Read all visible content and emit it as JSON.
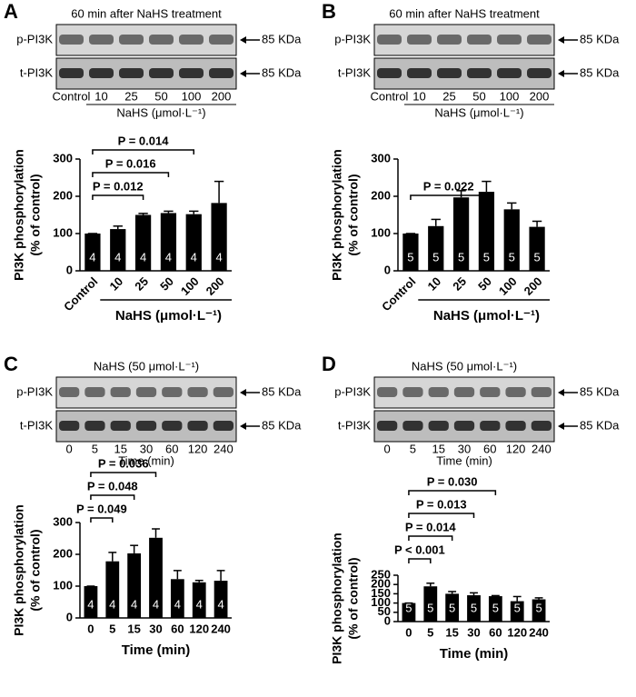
{
  "chart_data": [
    {
      "type": "bar",
      "panel_label": "A",
      "blot_header": "60 min after NaHS treatment",
      "blot_rows": [
        "p-PI3K",
        "t-PI3K"
      ],
      "blot_marker": "85 KDa",
      "categories": [
        "Control",
        "10",
        "25",
        "50",
        "100",
        "200"
      ],
      "values": [
        100,
        112,
        150,
        155,
        152,
        182
      ],
      "errors": [
        0,
        8,
        4,
        5,
        8,
        58
      ],
      "n": [
        4,
        4,
        4,
        4,
        4,
        4
      ],
      "x_label": "NaHS (μmol·L⁻¹)",
      "y_label": [
        "PI3K phosphorylation",
        "(% of control)"
      ],
      "ylim": [
        0,
        300
      ],
      "yticks": [
        0,
        100,
        200,
        300
      ],
      "color": "#000000",
      "annotations": [
        {
          "text": "P = 0.012",
          "from": "Control",
          "to": "25"
        },
        {
          "text": "P = 0.016",
          "from": "Control",
          "to": "50"
        },
        {
          "text": "P = 0.014",
          "from": "Control",
          "to": "100"
        }
      ]
    },
    {
      "type": "bar",
      "panel_label": "B",
      "blot_header": "60 min after NaHS treatment",
      "blot_rows": [
        "p-PI3K",
        "t-PI3K"
      ],
      "blot_marker": "85 KDa",
      "categories": [
        "Control",
        "10",
        "25",
        "50",
        "100",
        "200"
      ],
      "values": [
        100,
        120,
        197,
        212,
        165,
        118
      ],
      "errors": [
        0,
        18,
        18,
        28,
        17,
        15
      ],
      "n": [
        5,
        5,
        5,
        5,
        5,
        5
      ],
      "x_label": "NaHS (μmol·L⁻¹)",
      "y_label": [
        "PI3K phosphorylation",
        "(% of control)"
      ],
      "ylim": [
        0,
        300
      ],
      "yticks": [
        0,
        100,
        200,
        300
      ],
      "color": "#000000",
      "annotations": [
        {
          "text": "P = 0.022",
          "from": "Control",
          "to": "50"
        }
      ]
    },
    {
      "type": "bar",
      "panel_label": "C",
      "blot_header": "NaHS (50 μmol·L⁻¹)",
      "blot_rows": [
        "p-PI3K",
        "t-PI3K"
      ],
      "blot_marker": "85 KDa",
      "categories": [
        "0",
        "5",
        "15",
        "30",
        "60",
        "120",
        "240"
      ],
      "values": [
        100,
        178,
        203,
        252,
        122,
        112,
        117
      ],
      "errors": [
        0,
        28,
        25,
        28,
        27,
        6,
        32
      ],
      "n": [
        4,
        4,
        4,
        4,
        4,
        4,
        4
      ],
      "x_label": "Time (min)",
      "y_label": [
        "PI3K phosphorylation",
        "(% of control)"
      ],
      "ylim": [
        0,
        300
      ],
      "yticks": [
        0,
        100,
        200,
        300
      ],
      "color": "#000000",
      "annotations": [
        {
          "text": "P = 0.049",
          "from": "0",
          "to": "5"
        },
        {
          "text": "P = 0.048",
          "from": "0",
          "to": "15"
        },
        {
          "text": "P = 0.036",
          "from": "0",
          "to": "30"
        }
      ]
    },
    {
      "type": "bar",
      "panel_label": "D",
      "blot_header": "NaHS (50 μmol·L⁻¹)",
      "blot_rows": [
        "p-PI3K",
        "t-PI3K"
      ],
      "blot_marker": "85 KDa",
      "categories": [
        "0",
        "5",
        "15",
        "30",
        "60",
        "120",
        "240"
      ],
      "values": [
        100,
        190,
        150,
        142,
        137,
        110,
        120
      ],
      "errors": [
        0,
        17,
        12,
        13,
        3,
        25,
        8
      ],
      "n": [
        5,
        5,
        5,
        5,
        5,
        5,
        5
      ],
      "x_label": "Time (min)",
      "y_label": [
        "PI3K phosphorylation",
        "(% of control)"
      ],
      "ylim": [
        0,
        250
      ],
      "yticks": [
        0,
        50,
        100,
        150,
        200,
        250
      ],
      "color": "#000000",
      "annotations": [
        {
          "text": "P < 0.001",
          "from": "0",
          "to": "5"
        },
        {
          "text": "P = 0.014",
          "from": "0",
          "to": "15"
        },
        {
          "text": "P = 0.013",
          "from": "0",
          "to": "30"
        },
        {
          "text": "P = 0.030",
          "from": "0",
          "to": "60"
        }
      ]
    }
  ]
}
